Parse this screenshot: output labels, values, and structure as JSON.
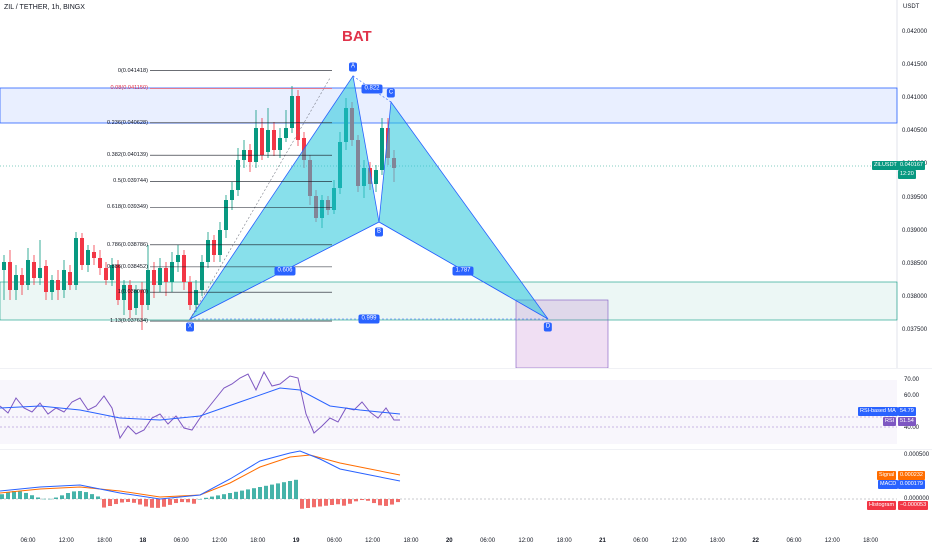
{
  "header": {
    "symbol_title": "ZIL / TETHER, 1h, BINGX",
    "pattern_title": "BAT",
    "price_unit": "USDT"
  },
  "price_axis": {
    "ticks": [
      "0.042000",
      "0.041500",
      "0.041000",
      "0.040500",
      "0.040000",
      "0.039500",
      "0.039000",
      "0.038500",
      "0.038000",
      "0.037500"
    ],
    "current_badge": {
      "symbol": "ZILUSDT",
      "price": "0.040167",
      "countdown": "12:20"
    },
    "colors": {
      "badge": "#089981"
    }
  },
  "fib_levels": [
    {
      "label": "0(0.041418)",
      "price": 0.041418,
      "color": "#131722"
    },
    {
      "label": "0.08(0.041150)",
      "price": 0.04115,
      "color": "#e0334a"
    },
    {
      "label": "0.236(0.040628)",
      "price": 0.040628,
      "color": "#131722"
    },
    {
      "label": "0.382(0.040139)",
      "price": 0.040139,
      "color": "#131722"
    },
    {
      "label": "0.5(0.039744)",
      "price": 0.039744,
      "color": "#131722"
    },
    {
      "label": "0.618(0.039349)",
      "price": 0.039349,
      "color": "#131722"
    },
    {
      "label": "0.786(0.038786)",
      "price": 0.038786,
      "color": "#131722"
    },
    {
      "label": "0.886(0.038452)",
      "price": 0.038452,
      "color": "#131722"
    },
    {
      "label": "1(0.038070)",
      "price": 0.03807,
      "color": "#131722"
    },
    {
      "label": "1.13(0.037634)",
      "price": 0.037634,
      "color": "#131722"
    }
  ],
  "pattern": {
    "points": {
      "X": "X",
      "A": "A",
      "B": "B",
      "C": "C",
      "D": "D"
    },
    "ratios": {
      "ab": "0.822",
      "xb": "0.606",
      "bd": "1.787",
      "xd": "0.999"
    },
    "colors": {
      "fill": "#26c6da",
      "line": "#2962ff"
    }
  },
  "rsi": {
    "ticks": [
      "70.00",
      "60.00",
      "40.00"
    ],
    "ma_label": "RSI-based MA",
    "ma_value": "54.79",
    "rsi_label": "RSI",
    "rsi_value": "51.54",
    "colors": {
      "rsi": "#7e57c2",
      "ma": "#2962ff"
    }
  },
  "macd": {
    "ticks": [
      "0.000500",
      "0.000000"
    ],
    "signal_label": "Signal",
    "signal_value": "0.000232",
    "macd_label": "MACD",
    "macd_value": "0.000179",
    "hist_label": "Histogram",
    "hist_value": "−0.000053",
    "colors": {
      "signal": "#ff6d00",
      "macd": "#2962ff",
      "hist_up": "#26a69a",
      "hist_down": "#ef5350"
    }
  },
  "time_axis": {
    "ticks": [
      "06:00",
      "12:00",
      "18:00",
      "18",
      "06:00",
      "12:00",
      "18:00",
      "19",
      "06:00",
      "12:00",
      "18:00",
      "20",
      "06:00",
      "12:00",
      "18:00",
      "21",
      "06:00",
      "12:00",
      "18:00",
      "22",
      "06:00",
      "12:00",
      "18:00"
    ]
  },
  "colors": {
    "up": "#089981",
    "down": "#f23645"
  }
}
